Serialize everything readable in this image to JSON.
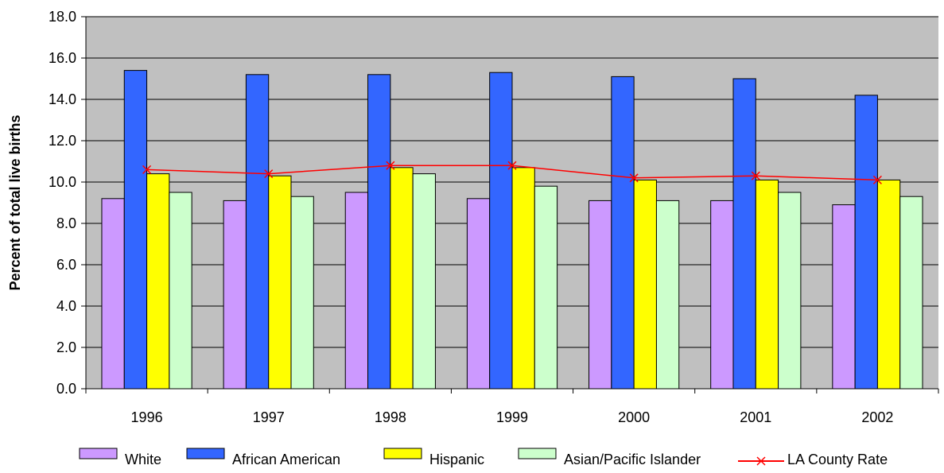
{
  "chart_data": {
    "type": "bar",
    "title": "",
    "xlabel": "",
    "ylabel": "Percent of total live births",
    "ylim": [
      0,
      18
    ],
    "yticks": [
      "0.0",
      "2.0",
      "4.0",
      "6.0",
      "8.0",
      "10.0",
      "12.0",
      "14.0",
      "16.0",
      "18.0"
    ],
    "categories": [
      "1996",
      "1997",
      "1998",
      "1999",
      "2000",
      "2001",
      "2002"
    ],
    "grid": true,
    "legend_position": "bottom",
    "plot_background": "#c0c0c0",
    "series": [
      {
        "name": "White",
        "kind": "bar",
        "color": "#cc99ff",
        "values": [
          9.2,
          9.1,
          9.5,
          9.2,
          9.1,
          9.1,
          8.9
        ]
      },
      {
        "name": "African American",
        "kind": "bar",
        "color": "#3366ff",
        "values": [
          15.4,
          15.2,
          15.2,
          15.3,
          15.1,
          15.0,
          14.2
        ]
      },
      {
        "name": "Hispanic",
        "kind": "bar",
        "color": "#ffff00",
        "values": [
          10.4,
          10.3,
          10.7,
          10.7,
          10.1,
          10.1,
          10.1
        ]
      },
      {
        "name": "Asian/Pacific Islander",
        "kind": "bar",
        "color": "#ccffcc",
        "values": [
          9.5,
          9.3,
          10.4,
          9.8,
          9.1,
          9.5,
          9.3
        ]
      },
      {
        "name": "LA County Rate",
        "kind": "line",
        "color": "#ff0000",
        "values": [
          10.6,
          10.4,
          10.8,
          10.8,
          10.2,
          10.3,
          10.1
        ]
      }
    ]
  }
}
